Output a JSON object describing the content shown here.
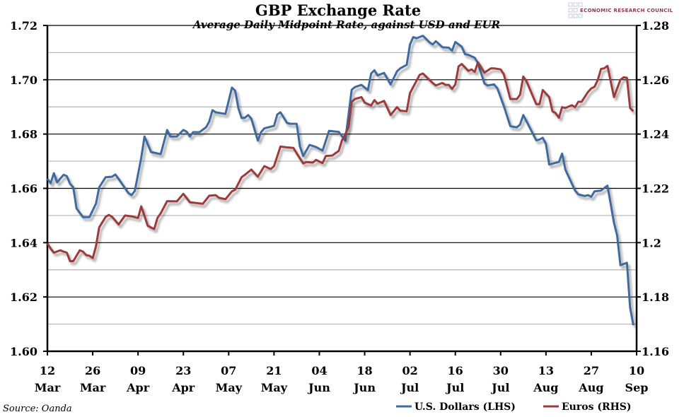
{
  "chart_data": {
    "type": "line",
    "title": "GBP Exchange Rate",
    "subtitle": "Average Daily Midpoint Rate, against USD and EUR",
    "source": "Source: Oanda",
    "logo_text": "ECONOMIC RESEARCH COUNCIL",
    "x_ticks": [
      {
        "day": "12",
        "month": "Mar"
      },
      {
        "day": "26",
        "month": "Mar"
      },
      {
        "day": "09",
        "month": "Apr"
      },
      {
        "day": "23",
        "month": "Apr"
      },
      {
        "day": "07",
        "month": "May"
      },
      {
        "day": "21",
        "month": "May"
      },
      {
        "day": "04",
        "month": "Jun"
      },
      {
        "day": "18",
        "month": "Jun"
      },
      {
        "day": "02",
        "month": "Jul"
      },
      {
        "day": "16",
        "month": "Jul"
      },
      {
        "day": "30",
        "month": "Jul"
      },
      {
        "day": "13",
        "month": "Aug"
      },
      {
        "day": "27",
        "month": "Aug"
      },
      {
        "day": "10",
        "month": "Sep"
      }
    ],
    "xlim": [
      "12 Mar",
      "10 Sep"
    ],
    "y_left": {
      "lim": [
        1.6,
        1.72
      ],
      "ticks": [
        "1.60",
        "1.62",
        "1.64",
        "1.66",
        "1.68",
        "1.70",
        "1.72"
      ]
    },
    "y_right": {
      "lim": [
        1.16,
        1.28
      ],
      "ticks": [
        "1.16",
        "1.18",
        "1.2",
        "1.22",
        "1.24",
        "1.26",
        "1.28"
      ]
    },
    "grid": {
      "major": true,
      "minor": true
    },
    "legend_position": "bottom-right",
    "series": [
      {
        "name": "U.S. Dollars (LHS)",
        "axis": "left",
        "color": "#3f6b9f",
        "points": [
          [
            "12 Mar",
            1.6636
          ],
          [
            "13 Mar",
            1.6619
          ],
          [
            "14 Mar",
            1.6656
          ],
          [
            "15 Mar",
            1.6622
          ],
          [
            "17 Mar",
            1.665
          ],
          [
            "18 Mar",
            1.6645
          ],
          [
            "19 Mar",
            1.6617
          ],
          [
            "20 Mar",
            1.6604
          ],
          [
            "21 Mar",
            1.6526
          ],
          [
            "23 Mar",
            1.6494
          ],
          [
            "25 Mar",
            1.6494
          ],
          [
            "27 Mar",
            1.6544
          ],
          [
            "28 Mar",
            1.6604
          ],
          [
            "30 Mar",
            1.6641
          ],
          [
            "1 Apr",
            1.6643
          ],
          [
            "2 Apr",
            1.6651
          ],
          [
            "3 Apr",
            1.6635
          ],
          [
            "6 Apr",
            1.6583
          ],
          [
            "7 Apr",
            1.6575
          ],
          [
            "8 Apr",
            1.6591
          ],
          [
            "10 Apr",
            1.6713
          ],
          [
            "11 Apr",
            1.6791
          ],
          [
            "13 Apr",
            1.6734
          ],
          [
            "16 Apr",
            1.6726
          ],
          [
            "18 Apr",
            1.6815
          ],
          [
            "19 Apr",
            1.6791
          ],
          [
            "21 Apr",
            1.6791
          ],
          [
            "23 Apr",
            1.6815
          ],
          [
            "24 Apr",
            1.6809
          ],
          [
            "25 Apr",
            1.6791
          ],
          [
            "26 Apr",
            1.6807
          ],
          [
            "28 Apr",
            1.6807
          ],
          [
            "30 Apr",
            1.6825
          ],
          [
            "1 May",
            1.6846
          ],
          [
            "2 May",
            1.6888
          ],
          [
            "3 May",
            1.688
          ],
          [
            "6 May",
            1.6874
          ],
          [
            "8 May",
            1.6971
          ],
          [
            "9 May",
            1.696
          ],
          [
            "10 May",
            1.6895
          ],
          [
            "11 May",
            1.6859
          ],
          [
            "12 May",
            1.686
          ],
          [
            "13 May",
            1.687
          ],
          [
            "14 May",
            1.6857
          ],
          [
            "16 May",
            1.6776
          ],
          [
            "17 May",
            1.6807
          ],
          [
            "18 May",
            1.6821
          ],
          [
            "21 May",
            1.683
          ],
          [
            "22 May",
            1.6872
          ],
          [
            "23 May",
            1.688
          ],
          [
            "25 May",
            1.6841
          ],
          [
            "26 May",
            1.6838
          ],
          [
            "28 May",
            1.6838
          ],
          [
            "29 May",
            1.6755
          ],
          [
            "30 May",
            1.6719
          ],
          [
            "1 Jun",
            1.676
          ],
          [
            "3 Jun",
            1.6752
          ],
          [
            "5 Jun",
            1.6739
          ],
          [
            "7 Jun",
            1.6812
          ],
          [
            "10 Jun",
            1.6808
          ],
          [
            "12 Jun",
            1.6776
          ],
          [
            "14 Jun",
            1.6963
          ],
          [
            "15 Jun",
            1.6973
          ],
          [
            "17 Jun",
            1.6981
          ],
          [
            "19 Jun",
            1.6962
          ],
          [
            "20 Jun",
            1.7023
          ],
          [
            "21 Jun",
            1.7035
          ],
          [
            "22 Jun",
            1.7016
          ],
          [
            "24 Jun",
            1.7025
          ],
          [
            "26 Jun",
            1.6983
          ],
          [
            "28 Jun",
            1.7031
          ],
          [
            "29 Jun",
            1.7042
          ],
          [
            "1 Jul",
            1.7055
          ],
          [
            "2 Jul",
            1.713
          ],
          [
            "3 Jul",
            1.7157
          ],
          [
            "4 Jul",
            1.7153
          ],
          [
            "6 Jul",
            1.7162
          ],
          [
            "8 Jul",
            1.7138
          ],
          [
            "9 Jul",
            1.713
          ],
          [
            "10 Jul",
            1.7142
          ],
          [
            "12 Jul",
            1.712
          ],
          [
            "14 Jul",
            1.7118
          ],
          [
            "15 Jul",
            1.7107
          ],
          [
            "16 Jul",
            1.7139
          ],
          [
            "18 Jul",
            1.7122
          ],
          [
            "19 Jul",
            1.7094
          ],
          [
            "20 Jul",
            1.7092
          ],
          [
            "22 Jul",
            1.7081
          ],
          [
            "23 Jul",
            1.7061
          ],
          [
            "25 Jul",
            1.6986
          ],
          [
            "26 Jul",
            1.6979
          ],
          [
            "28 Jul",
            1.6983
          ],
          [
            "29 Jul",
            1.6968
          ],
          [
            "31 Jul",
            1.6903
          ],
          [
            "2 Aug",
            1.6829
          ],
          [
            "4 Aug",
            1.6825
          ],
          [
            "5 Aug",
            1.6835
          ],
          [
            "6 Aug",
            1.687
          ],
          [
            "7 Aug",
            1.6847
          ],
          [
            "10 Aug",
            1.6777
          ],
          [
            "11 Aug",
            1.678
          ],
          [
            "12 Aug",
            1.6786
          ],
          [
            "13 Aug",
            1.6764
          ],
          [
            "14 Aug",
            1.6688
          ],
          [
            "17 Aug",
            1.6697
          ],
          [
            "18 Aug",
            1.6728
          ],
          [
            "19 Aug",
            1.6669
          ],
          [
            "22 Aug",
            1.6592
          ],
          [
            "23 Aug",
            1.6578
          ],
          [
            "25 Aug",
            1.6572
          ],
          [
            "26 Aug",
            1.6575
          ],
          [
            "27 Aug",
            1.6569
          ],
          [
            "28 Aug",
            1.6589
          ],
          [
            "30 Aug",
            1.6592
          ],
          [
            "31 Aug",
            1.6601
          ],
          [
            "1 Sep",
            1.661
          ],
          [
            "3 Sep",
            1.6473
          ],
          [
            "4 Sep",
            1.6426
          ],
          [
            "5 Sep",
            1.6317
          ],
          [
            "7 Sep",
            1.6326
          ],
          [
            "8 Sep",
            1.6161
          ],
          [
            "9 Sep",
            1.6096
          ]
        ]
      },
      {
        "name": "Euros (RHS)",
        "axis": "right",
        "color": "#9b3a3a",
        "points": [
          [
            "12 Mar",
            1.1998
          ],
          [
            "13 Mar",
            1.1978
          ],
          [
            "14 Mar",
            1.1963
          ],
          [
            "16 Mar",
            1.1972
          ],
          [
            "17 Mar",
            1.1967
          ],
          [
            "18 Mar",
            1.1963
          ],
          [
            "19 Mar",
            1.1932
          ],
          [
            "20 Mar",
            1.1932
          ],
          [
            "22 Mar",
            1.1972
          ],
          [
            "23 Mar",
            1.1967
          ],
          [
            "24 Mar",
            1.1954
          ],
          [
            "25 Mar",
            1.1952
          ],
          [
            "26 Mar",
            1.1943
          ],
          [
            "27 Mar",
            1.1987
          ],
          [
            "28 Mar",
            1.2056
          ],
          [
            "30 Mar",
            1.2095
          ],
          [
            "31 Mar",
            1.2102
          ],
          [
            "1 Apr",
            1.2095
          ],
          [
            "3 Apr",
            1.2067
          ],
          [
            "5 Apr",
            1.21
          ],
          [
            "7 Apr",
            1.2097
          ],
          [
            "9 Apr",
            1.2091
          ],
          [
            "10 Apr",
            1.2134
          ],
          [
            "12 Apr",
            1.2062
          ],
          [
            "14 Apr",
            1.205
          ],
          [
            "15 Apr",
            1.2091
          ],
          [
            "16 Apr",
            1.2108
          ],
          [
            "18 Apr",
            1.2153
          ],
          [
            "21 Apr",
            1.2152
          ],
          [
            "23 Apr",
            1.218
          ],
          [
            "25 Apr",
            1.2149
          ],
          [
            "27 Apr",
            1.2146
          ],
          [
            "29 Apr",
            1.2143
          ],
          [
            "1 May",
            1.2173
          ],
          [
            "3 May",
            1.2175
          ],
          [
            "4 May",
            1.2165
          ],
          [
            "6 May",
            1.216
          ],
          [
            "8 May",
            1.2189
          ],
          [
            "9 May",
            1.2195
          ],
          [
            "11 May",
            1.2241
          ],
          [
            "12 May",
            1.225
          ],
          [
            "14 May",
            1.2269
          ],
          [
            "16 May",
            1.2243
          ],
          [
            "18 May",
            1.2282
          ],
          [
            "20 May",
            1.2271
          ],
          [
            "21 May",
            1.2282
          ],
          [
            "23 May",
            1.2354
          ],
          [
            "25 May",
            1.2351
          ],
          [
            "27 May",
            1.2349
          ],
          [
            "28 May",
            1.2329
          ],
          [
            "30 May",
            1.2292
          ],
          [
            "31 May",
            1.2297
          ],
          [
            "2 Jun",
            1.2295
          ],
          [
            "3 Jun",
            1.2305
          ],
          [
            "5 Jun",
            1.2293
          ],
          [
            "6 Jun",
            1.2319
          ],
          [
            "8 Jun",
            1.2321
          ],
          [
            "10 Jun",
            1.2338
          ],
          [
            "11 Jun",
            1.2377
          ],
          [
            "12 Jun",
            1.2399
          ],
          [
            "13 Jun",
            1.2425
          ],
          [
            "14 Jun",
            1.2519
          ],
          [
            "15 Jun",
            1.2529
          ],
          [
            "17 Jun",
            1.2536
          ],
          [
            "18 Jun",
            1.2516
          ],
          [
            "20 Jun",
            1.2505
          ],
          [
            "21 Jun",
            1.2525
          ],
          [
            "22 Jun",
            1.2512
          ],
          [
            "24 Jun",
            1.2522
          ],
          [
            "26 Jun",
            1.247
          ],
          [
            "28 Jun",
            1.2499
          ],
          [
            "29 Jun",
            1.2486
          ],
          [
            "1 Jul",
            1.2484
          ],
          [
            "2 Jul",
            1.2551
          ],
          [
            "5 Jul",
            1.2618
          ],
          [
            "6 Jul",
            1.2623
          ],
          [
            "9 Jul",
            1.2588
          ],
          [
            "10 Jul",
            1.2579
          ],
          [
            "12 Jul",
            1.2588
          ],
          [
            "13 Jul",
            1.2581
          ],
          [
            "14 Jul",
            1.2581
          ],
          [
            "15 Jul",
            1.2566
          ],
          [
            "16 Jul",
            1.2583
          ],
          [
            "17 Jul",
            1.2649
          ],
          [
            "18 Jul",
            1.2658
          ],
          [
            "20 Jul",
            1.2633
          ],
          [
            "21 Jul",
            1.2638
          ],
          [
            "22 Jul",
            1.2629
          ],
          [
            "23 Jul",
            1.2664
          ],
          [
            "25 Jul",
            1.2626
          ],
          [
            "27 Jul",
            1.2642
          ],
          [
            "28 Jul",
            1.2642
          ],
          [
            "30 Jul",
            1.2638
          ],
          [
            "31 Jul",
            1.262
          ],
          [
            "2 Aug",
            1.2529
          ],
          [
            "4 Aug",
            1.2529
          ],
          [
            "5 Aug",
            1.2545
          ],
          [
            "6 Aug",
            1.2612
          ],
          [
            "7 Aug",
            1.2594
          ],
          [
            "10 Aug",
            1.251
          ],
          [
            "11 Aug",
            1.251
          ],
          [
            "12 Aug",
            1.2562
          ],
          [
            "14 Aug",
            1.2536
          ],
          [
            "15 Aug",
            1.2484
          ],
          [
            "16 Aug",
            1.2477
          ],
          [
            "17 Aug",
            1.246
          ],
          [
            "18 Aug",
            1.2499
          ],
          [
            "19 Aug",
            1.2496
          ],
          [
            "21 Aug",
            1.2506
          ],
          [
            "22 Aug",
            1.2499
          ],
          [
            "23 Aug",
            1.2519
          ],
          [
            "24 Aug",
            1.2519
          ],
          [
            "26 Aug",
            1.2555
          ],
          [
            "27 Aug",
            1.2568
          ],
          [
            "28 Aug",
            1.2574
          ],
          [
            "29 Aug",
            1.2599
          ],
          [
            "30 Aug",
            1.264
          ],
          [
            "31 Aug",
            1.2642
          ],
          [
            "1 Sep",
            1.2651
          ],
          [
            "3 Sep",
            1.2536
          ],
          [
            "5 Sep",
            1.26
          ],
          [
            "6 Sep",
            1.2609
          ],
          [
            "7 Sep",
            1.2607
          ],
          [
            "8 Sep",
            1.2496
          ],
          [
            "9 Sep",
            1.2484
          ]
        ]
      }
    ]
  }
}
